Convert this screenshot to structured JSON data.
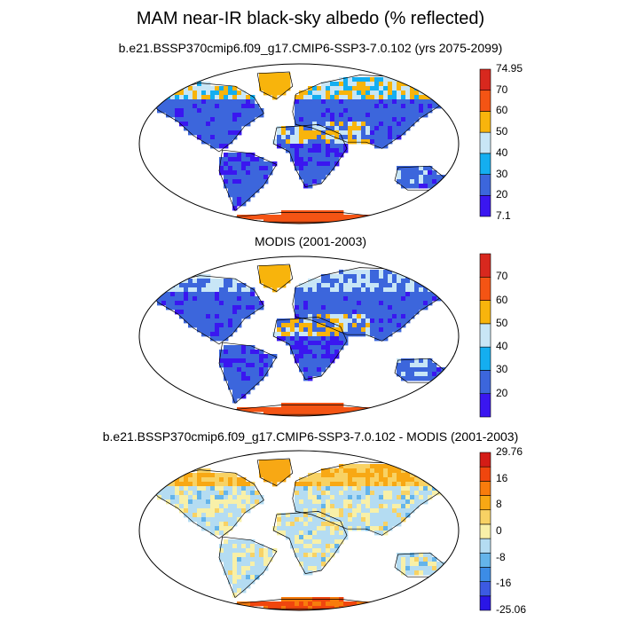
{
  "title": "MAM near-IR black-sky albedo (% reflected)",
  "panels": [
    {
      "title": "b.e21.BSSP370cmip6.f09_g17.CMIP6-SSP3-7.0.102 (yrs 2075-2099)",
      "colorbar": {
        "colors": [
          "#3a16f0",
          "#3c66dc",
          "#14aef0",
          "#c8e6f6",
          "#f8b40c",
          "#f45414",
          "#d8281e"
        ],
        "labels": [
          "74.95",
          "70",
          "60",
          "50",
          "40",
          "30",
          "20",
          "7.1"
        ]
      }
    },
    {
      "title": "MODIS (2001-2003)",
      "colorbar": {
        "colors": [
          "#3a16f0",
          "#3c66dc",
          "#14aef0",
          "#c8e6f6",
          "#f8b40c",
          "#f45414",
          "#d8281e"
        ],
        "labels": [
          "70",
          "60",
          "50",
          "40",
          "30",
          "20"
        ]
      }
    },
    {
      "title": "b.e21.BSSP370cmip6.f09_g17.CMIP6-SSP3-7.0.102 - MODIS (2001-2003)",
      "colorbar": {
        "colors": [
          "#2a16e6",
          "#3c5ae2",
          "#3c8ce6",
          "#64b4ea",
          "#b4dcf2",
          "#f8f0a8",
          "#f8d264",
          "#f8a814",
          "#f87c0c",
          "#f0460e",
          "#d41c16"
        ],
        "labels": [
          "29.76",
          "16",
          "8",
          "0",
          "-8",
          "-16",
          "-25.06"
        ]
      }
    }
  ]
}
